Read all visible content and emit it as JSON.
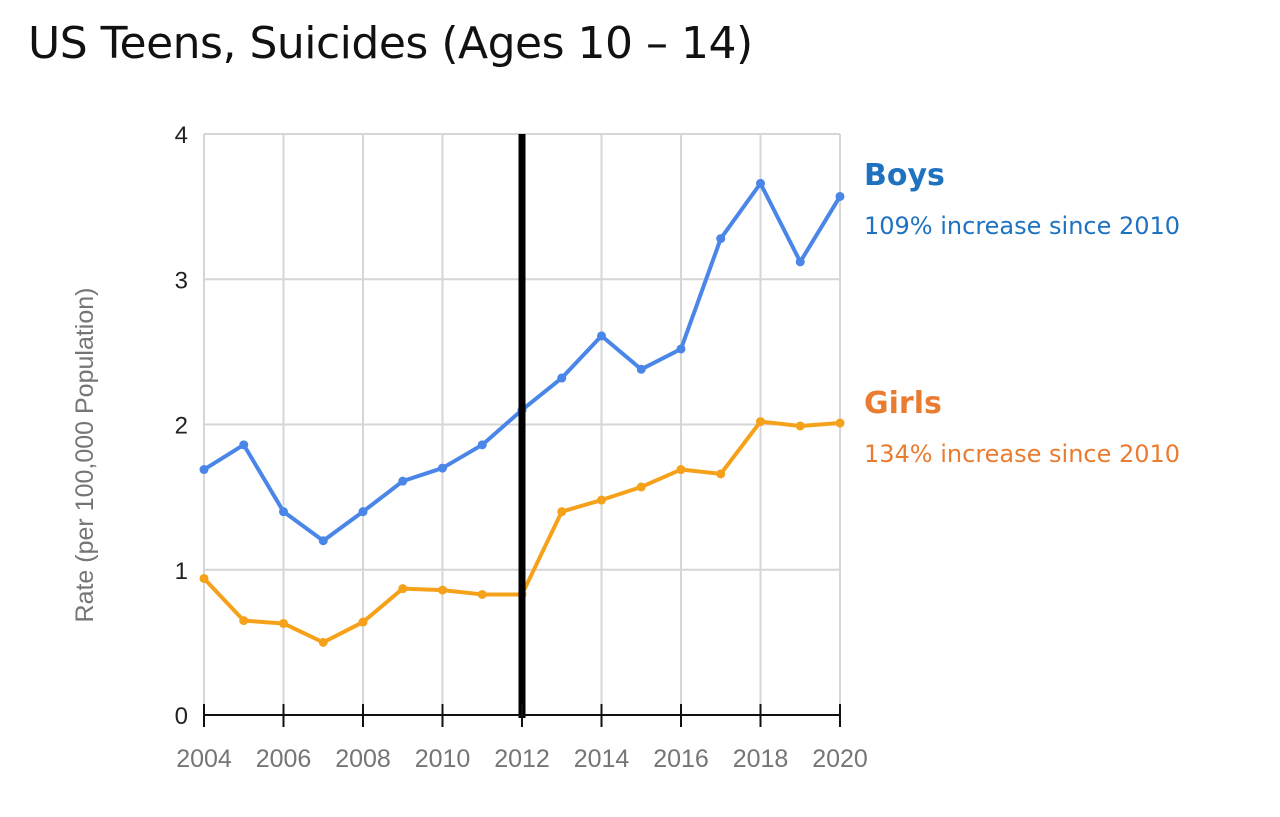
{
  "chart_data": {
    "type": "line",
    "title": "US Teens, Suicides (Ages 10 – 14)",
    "xlabel": "",
    "ylabel": "Rate (per 100,000 Population)",
    "x": [
      2004,
      2005,
      2006,
      2007,
      2008,
      2009,
      2010,
      2011,
      2012,
      2013,
      2014,
      2015,
      2016,
      2017,
      2018,
      2019,
      2020
    ],
    "xticks": [
      "2004",
      "2006",
      "2008",
      "2010",
      "2012",
      "2014",
      "2016",
      "2018",
      "2020"
    ],
    "yticks": [
      "0",
      "1",
      "2",
      "3",
      "4"
    ],
    "xlim": [
      2004,
      2020
    ],
    "ylim": [
      0,
      4
    ],
    "grid": true,
    "marker_line_year": 2012,
    "series": [
      {
        "name": "Boys",
        "color": "#4a86e8",
        "values": [
          1.69,
          1.86,
          1.4,
          1.2,
          1.4,
          1.61,
          1.7,
          1.86,
          2.1,
          2.32,
          2.61,
          2.38,
          2.52,
          3.28,
          3.66,
          3.12,
          3.57
        ]
      },
      {
        "name": "Girls",
        "color": "#f6a11a",
        "values": [
          0.94,
          0.65,
          0.63,
          0.5,
          0.64,
          0.87,
          0.86,
          0.83,
          0.83,
          1.4,
          1.48,
          1.57,
          1.69,
          1.66,
          2.02,
          1.99,
          2.01
        ]
      }
    ],
    "annotations": [
      {
        "label": "Boys",
        "text": "109% increase since 2010",
        "color": "#1f72c0"
      },
      {
        "label": "Girls",
        "text": "134% increase since 2010",
        "color": "#e97c30"
      }
    ]
  }
}
